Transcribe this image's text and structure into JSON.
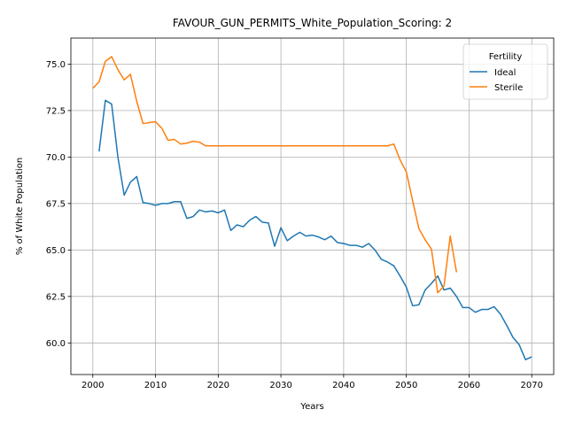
{
  "chart_data": {
    "type": "line",
    "title": "FAVOUR_GUN_PERMITS_White_Population_Scoring: 2",
    "xlabel": "Years",
    "ylabel": "% of White Population",
    "xlim": [
      1996.5,
      2073.5
    ],
    "ylim": [
      58.3,
      76.4
    ],
    "xticks": [
      2000,
      2010,
      2020,
      2030,
      2040,
      2050,
      2060,
      2070
    ],
    "yticks": [
      60.0,
      62.5,
      65.0,
      67.5,
      70.0,
      72.5,
      75.0
    ],
    "grid": true,
    "legend": {
      "title": "Fertility",
      "placement": "top-right"
    },
    "series": [
      {
        "name": "Ideal",
        "color": "#1f77b4",
        "x": [
          2001,
          2002,
          2003,
          2004,
          2005,
          2006,
          2007,
          2008,
          2009,
          2010,
          2011,
          2012,
          2013,
          2014,
          2015,
          2016,
          2017,
          2018,
          2019,
          2020,
          2021,
          2022,
          2023,
          2024,
          2025,
          2026,
          2027,
          2028,
          2029,
          2030,
          2031,
          2032,
          2033,
          2034,
          2035,
          2036,
          2037,
          2038,
          2039,
          2040,
          2041,
          2042,
          2043,
          2044,
          2045,
          2046,
          2047,
          2048,
          2049,
          2050,
          2051,
          2052,
          2053,
          2054,
          2055,
          2056,
          2057,
          2058,
          2059,
          2060,
          2061,
          2062,
          2063,
          2064,
          2065,
          2066,
          2067,
          2068,
          2069,
          2070
        ],
        "y": [
          70.3,
          73.05,
          72.85,
          70.0,
          67.95,
          68.65,
          68.95,
          67.55,
          67.5,
          67.4,
          67.5,
          67.5,
          67.6,
          67.6,
          66.7,
          66.8,
          67.15,
          67.05,
          67.1,
          67.0,
          67.15,
          66.05,
          66.35,
          66.25,
          66.6,
          66.8,
          66.5,
          66.45,
          65.2,
          66.2,
          65.5,
          65.75,
          65.95,
          65.75,
          65.8,
          65.7,
          65.55,
          65.75,
          65.4,
          65.35,
          65.25,
          65.25,
          65.15,
          65.35,
          65.0,
          64.5,
          64.35,
          64.15,
          63.6,
          63.0,
          62.0,
          62.05,
          62.85,
          63.2,
          63.6,
          62.85,
          62.95,
          62.5,
          61.9,
          61.9,
          61.65,
          61.8,
          61.8,
          61.95,
          61.55,
          60.95,
          60.3,
          59.9,
          59.1,
          59.25
        ]
      },
      {
        "name": "Sterile",
        "color": "#ff7f0e",
        "x": [
          2000,
          2001,
          2002,
          2003,
          2004,
          2005,
          2006,
          2007,
          2008,
          2009,
          2010,
          2011,
          2012,
          2013,
          2014,
          2015,
          2016,
          2017,
          2018,
          2019,
          2020,
          2021,
          2022,
          2023,
          2024,
          2025,
          2026,
          2027,
          2028,
          2029,
          2030,
          2031,
          2032,
          2033,
          2034,
          2035,
          2036,
          2037,
          2038,
          2039,
          2040,
          2041,
          2042,
          2043,
          2044,
          2045,
          2046,
          2047,
          2048,
          2049,
          2050,
          2051,
          2052,
          2053,
          2054,
          2055,
          2056,
          2057,
          2058
        ],
        "y": [
          73.7,
          74.05,
          75.15,
          75.4,
          74.7,
          74.15,
          74.45,
          73.0,
          71.8,
          71.85,
          71.9,
          71.55,
          70.9,
          70.95,
          70.7,
          70.75,
          70.85,
          70.8,
          70.6,
          70.6,
          70.6,
          70.6,
          70.6,
          70.6,
          70.6,
          70.6,
          70.6,
          70.6,
          70.6,
          70.6,
          70.6,
          70.6,
          70.6,
          70.6,
          70.6,
          70.6,
          70.6,
          70.6,
          70.6,
          70.6,
          70.6,
          70.6,
          70.6,
          70.6,
          70.6,
          70.6,
          70.6,
          70.6,
          70.7,
          69.85,
          69.2,
          67.65,
          66.15,
          65.55,
          65.05,
          62.7,
          63.05,
          65.75,
          63.8
        ]
      }
    ]
  }
}
